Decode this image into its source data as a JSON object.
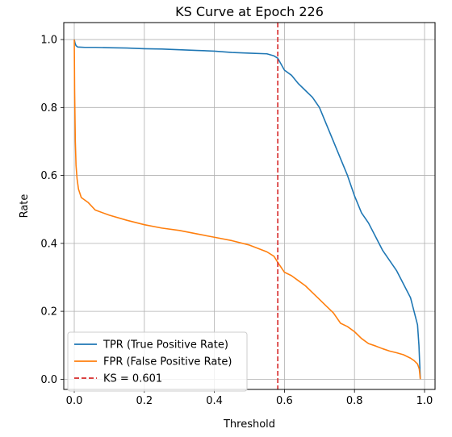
{
  "chart_data": {
    "type": "line",
    "title": "KS Curve at Epoch 226",
    "xlabel": "Threshold",
    "ylabel": "Rate",
    "xlim": [
      -0.03,
      1.03
    ],
    "ylim": [
      -0.03,
      1.05
    ],
    "xticks": [
      0.0,
      0.2,
      0.4,
      0.6,
      0.8,
      1.0
    ],
    "xtick_labels": [
      "0.0",
      "0.2",
      "0.4",
      "0.6",
      "0.8",
      "1.0"
    ],
    "yticks": [
      0.0,
      0.2,
      0.4,
      0.6,
      0.8,
      1.0
    ],
    "ytick_labels": [
      "0.0",
      "0.2",
      "0.4",
      "0.6",
      "0.8",
      "1.0"
    ],
    "grid": true,
    "legend_position": "lower-left",
    "series": [
      {
        "name": "TPR (True Positive Rate)",
        "color": "#1f77b4",
        "style": "solid",
        "x": [
          0.0,
          0.002,
          0.005,
          0.01,
          0.03,
          0.06,
          0.1,
          0.15,
          0.2,
          0.25,
          0.3,
          0.35,
          0.4,
          0.45,
          0.5,
          0.55,
          0.57,
          0.581,
          0.6,
          0.62,
          0.64,
          0.66,
          0.68,
          0.7,
          0.72,
          0.74,
          0.76,
          0.78,
          0.8,
          0.82,
          0.84,
          0.86,
          0.88,
          0.9,
          0.92,
          0.94,
          0.96,
          0.97,
          0.98,
          0.984,
          0.986,
          0.988
        ],
        "y": [
          1.0,
          0.99,
          0.982,
          0.978,
          0.977,
          0.977,
          0.976,
          0.975,
          0.973,
          0.972,
          0.97,
          0.968,
          0.966,
          0.962,
          0.96,
          0.958,
          0.952,
          0.945,
          0.91,
          0.895,
          0.87,
          0.85,
          0.83,
          0.8,
          0.75,
          0.7,
          0.65,
          0.6,
          0.54,
          0.49,
          0.46,
          0.42,
          0.38,
          0.35,
          0.32,
          0.28,
          0.24,
          0.2,
          0.16,
          0.1,
          0.05,
          0.0
        ]
      },
      {
        "name": "FPR (False Positive Rate)",
        "color": "#ff7f0e",
        "style": "solid",
        "x": [
          0.0,
          0.001,
          0.003,
          0.005,
          0.008,
          0.012,
          0.02,
          0.04,
          0.06,
          0.1,
          0.15,
          0.2,
          0.25,
          0.3,
          0.35,
          0.4,
          0.45,
          0.5,
          0.55,
          0.57,
          0.581,
          0.6,
          0.62,
          0.64,
          0.66,
          0.68,
          0.7,
          0.72,
          0.74,
          0.76,
          0.78,
          0.8,
          0.82,
          0.84,
          0.86,
          0.88,
          0.9,
          0.92,
          0.94,
          0.96,
          0.97,
          0.98,
          0.985,
          0.988
        ],
        "y": [
          1.0,
          0.85,
          0.7,
          0.63,
          0.59,
          0.56,
          0.535,
          0.52,
          0.498,
          0.483,
          0.468,
          0.455,
          0.445,
          0.438,
          0.428,
          0.418,
          0.408,
          0.395,
          0.375,
          0.362,
          0.344,
          0.315,
          0.305,
          0.29,
          0.275,
          0.255,
          0.235,
          0.215,
          0.195,
          0.165,
          0.155,
          0.14,
          0.12,
          0.105,
          0.098,
          0.09,
          0.083,
          0.078,
          0.072,
          0.062,
          0.055,
          0.045,
          0.03,
          0.0
        ]
      }
    ],
    "annotations": [
      {
        "type": "vertical-line",
        "name": "KS = 0.601",
        "x": 0.581,
        "color": "#d62728",
        "style": "dashed"
      }
    ]
  }
}
